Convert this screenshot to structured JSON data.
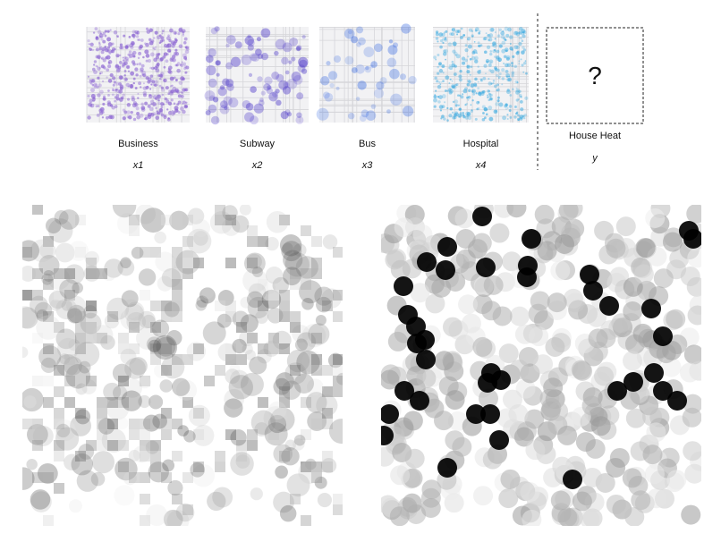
{
  "inputs": [
    {
      "label": "Business",
      "variable": "x1"
    },
    {
      "label": "Subway",
      "variable": "x2"
    },
    {
      "label": "Bus",
      "variable": "x3"
    },
    {
      "label": "Hospital",
      "variable": "x4"
    }
  ],
  "output": {
    "label": "House Heat",
    "variable": "y",
    "placeholder": "?"
  }
}
